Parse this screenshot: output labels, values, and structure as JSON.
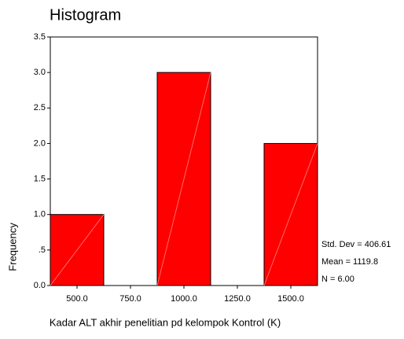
{
  "chart_data": {
    "type": "histogram",
    "title": "Histogram",
    "x_label": "Kadar ALT akhir penelitian pd kelompok Kontrol (K)",
    "y_label": "Frequency",
    "bins": [
      375,
      625,
      875,
      1125,
      1375,
      1625
    ],
    "values": [
      1,
      0,
      3,
      0,
      2
    ],
    "color": "#ff0000",
    "xlim": [
      375,
      1625
    ],
    "xticks": [
      {
        "value": 500,
        "label": "500.0"
      },
      {
        "value": 750,
        "label": "750.0"
      },
      {
        "value": 1000,
        "label": "1000.0"
      },
      {
        "value": 1250,
        "label": "1250.0"
      },
      {
        "value": 1500,
        "label": "1500.0"
      }
    ],
    "ylim": [
      0,
      3.5
    ],
    "yticks": [
      {
        "value": 0,
        "label": "0.0"
      },
      {
        "value": 0.5,
        "label": ".5"
      },
      {
        "value": 1,
        "label": "1.0"
      },
      {
        "value": 1.5,
        "label": "1.5"
      },
      {
        "value": 2,
        "label": "2.0"
      },
      {
        "value": 2.5,
        "label": "2.5"
      },
      {
        "value": 3,
        "label": "3.0"
      },
      3.5
    ],
    "annotations": [
      "Std. Dev = 406.61",
      "Mean = 1119.8",
      "N = 6.00"
    ]
  }
}
